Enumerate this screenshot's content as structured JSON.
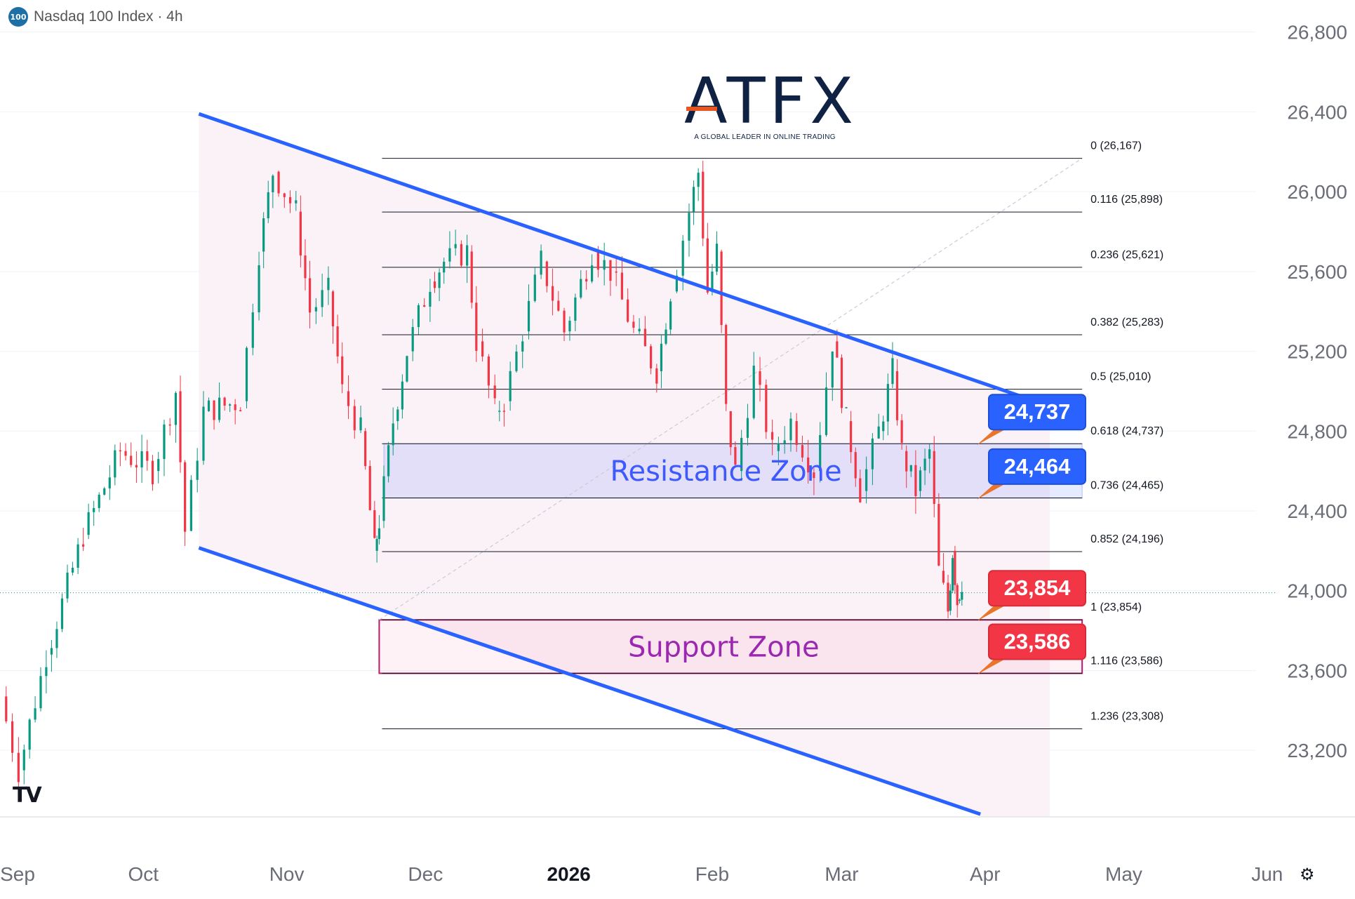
{
  "header": {
    "badge": "100",
    "symbol": "Nasdaq 100 Index",
    "separator": "·",
    "interval": "4h"
  },
  "logo": {
    "wordmark": "ATFX",
    "tagline": "A GLOBAL LEADER IN ONLINE TRADING"
  },
  "watermark": "TV",
  "settings_icon": "gear-icon",
  "chart_data": {
    "type": "candlestick",
    "title": "Nasdaq 100 Index · 4h",
    "y_axis": {
      "ticks": [
        "26,800",
        "26,400",
        "26,000",
        "25,600",
        "25,200",
        "24,800",
        "24,400",
        "24,000",
        "23,600",
        "23,200"
      ],
      "tick_values": [
        26800,
        26400,
        26000,
        25600,
        25200,
        24800,
        24400,
        24000,
        23600,
        23200
      ],
      "ylim": [
        22870,
        26820
      ],
      "position": "right",
      "grid": true
    },
    "x_axis": {
      "ticks": [
        "Sep",
        "Oct",
        "Nov",
        "Dec",
        "2026",
        "Feb",
        "Mar",
        "Apr",
        "May",
        "Jun"
      ],
      "tick_dates": [
        "2025-09-01",
        "2025-10-01",
        "2025-11-01",
        "2025-12-01",
        "2026-01-01",
        "2026-02-01",
        "2026-03-01",
        "2026-04-01",
        "2026-05-01",
        "2026-06-01"
      ],
      "bold_ticks": [
        "2026"
      ],
      "range": [
        "2025-08-31",
        "2026-06-20"
      ],
      "grid": false
    },
    "colors": {
      "up": "#089981",
      "down": "#f23645",
      "channel": "#2962ff",
      "fib": "#131722"
    },
    "price_path": [
      {
        "date": "2025-08-31",
        "price": 23470
      },
      {
        "date": "2025-09-04",
        "price": 23100
      },
      {
        "date": "2025-09-10",
        "price": 23680
      },
      {
        "date": "2025-09-18",
        "price": 24280
      },
      {
        "date": "2025-09-26",
        "price": 24700
      },
      {
        "date": "2025-10-03",
        "price": 24600
      },
      {
        "date": "2025-10-08",
        "price": 25000
      },
      {
        "date": "2025-10-10",
        "price": 24300
      },
      {
        "date": "2025-10-14",
        "price": 24900
      },
      {
        "date": "2025-10-22",
        "price": 24950
      },
      {
        "date": "2025-10-26",
        "price": 25700
      },
      {
        "date": "2025-10-29",
        "price": 26100
      },
      {
        "date": "2025-11-03",
        "price": 25900
      },
      {
        "date": "2025-11-06",
        "price": 25400
      },
      {
        "date": "2025-11-10",
        "price": 25500
      },
      {
        "date": "2025-11-13",
        "price": 25000
      },
      {
        "date": "2025-11-17",
        "price": 24800
      },
      {
        "date": "2025-11-20",
        "price": 24200
      },
      {
        "date": "2025-11-21",
        "price": 24350
      },
      {
        "date": "2025-11-24",
        "price": 24850
      },
      {
        "date": "2025-11-27",
        "price": 25200
      },
      {
        "date": "2025-12-02",
        "price": 25550
      },
      {
        "date": "2025-12-05",
        "price": 25650
      },
      {
        "date": "2025-12-10",
        "price": 25700
      },
      {
        "date": "2025-12-12",
        "price": 25250
      },
      {
        "date": "2025-12-16",
        "price": 24900
      },
      {
        "date": "2025-12-18",
        "price": 24950
      },
      {
        "date": "2025-12-22",
        "price": 25300
      },
      {
        "date": "2025-12-26",
        "price": 25650
      },
      {
        "date": "2025-12-31",
        "price": 25300
      },
      {
        "date": "2026-01-06",
        "price": 25700
      },
      {
        "date": "2026-01-10",
        "price": 25600
      },
      {
        "date": "2026-01-15",
        "price": 25300
      },
      {
        "date": "2026-01-20",
        "price": 25100
      },
      {
        "date": "2026-01-23",
        "price": 25500
      },
      {
        "date": "2026-01-27",
        "price": 25900
      },
      {
        "date": "2026-01-29",
        "price": 26100
      },
      {
        "date": "2026-01-31",
        "price": 25500
      },
      {
        "date": "2026-02-02",
        "price": 25700
      },
      {
        "date": "2026-02-04",
        "price": 24900
      },
      {
        "date": "2026-02-06",
        "price": 24600
      },
      {
        "date": "2026-02-10",
        "price": 25100
      },
      {
        "date": "2026-02-14",
        "price": 24700
      },
      {
        "date": "2026-02-18",
        "price": 24850
      },
      {
        "date": "2026-02-23",
        "price": 24600
      },
      {
        "date": "2026-02-27",
        "price": 25250
      },
      {
        "date": "2026-03-02",
        "price": 24850
      },
      {
        "date": "2026-03-05",
        "price": 24500
      },
      {
        "date": "2026-03-09",
        "price": 24800
      },
      {
        "date": "2026-03-12",
        "price": 25100
      },
      {
        "date": "2026-03-14",
        "price": 24700
      },
      {
        "date": "2026-03-17",
        "price": 24500
      },
      {
        "date": "2026-03-20",
        "price": 24700
      },
      {
        "date": "2026-03-22",
        "price": 24100
      },
      {
        "date": "2026-03-24",
        "price": 23900
      },
      {
        "date": "2026-03-25",
        "price": 24200
      },
      {
        "date": "2026-03-26",
        "price": 23950
      },
      {
        "date": "2026-03-27",
        "price": 24050
      }
    ],
    "current_price": 23990,
    "channel": {
      "upper": {
        "start": {
          "date": "2025-10-13",
          "price": 26390
        },
        "end": {
          "date": "2026-04-15",
          "price": 24925
        }
      },
      "lower": {
        "start": {
          "date": "2025-10-13",
          "price": 24215
        },
        "end": {
          "date": "2026-03-31",
          "price": 22880
        }
      },
      "fill_end_date": "2026-04-15"
    },
    "fibonacci": {
      "anchor_low": {
        "date": "2025-11-21",
        "price": 23854
      },
      "anchor_high": {
        "date": "2026-04-22",
        "price": 26167
      },
      "start_date": "2025-11-21",
      "end_date": "2026-04-22",
      "levels": [
        {
          "ratio": "0",
          "price": 26167,
          "label": "0 (26,167)"
        },
        {
          "ratio": "0.116",
          "price": 25898,
          "label": "0.116 (25,898)"
        },
        {
          "ratio": "0.236",
          "price": 25621,
          "label": "0.236 (25,621)"
        },
        {
          "ratio": "0.382",
          "price": 25283,
          "label": "0.382 (25,283)"
        },
        {
          "ratio": "0.5",
          "price": 25010,
          "label": "0.5 (25,010)"
        },
        {
          "ratio": "0.618",
          "price": 24737,
          "label": "0.618 (24,737)"
        },
        {
          "ratio": "0.736",
          "price": 24465,
          "label": "0.736 (24,465)"
        },
        {
          "ratio": "0.852",
          "price": 24196,
          "label": "0.852 (24,196)"
        },
        {
          "ratio": "1",
          "price": 23854,
          "label": "1 (23,854)"
        },
        {
          "ratio": "1.116",
          "price": 23586,
          "label": "1.116 (23,586)"
        },
        {
          "ratio": "1.236",
          "price": 23308,
          "label": "1.236 (23,308)"
        }
      ]
    },
    "zones": [
      {
        "name": "Resistance Zone",
        "top": 24737,
        "bottom": 24464,
        "start_date": "2025-11-22",
        "end_date": "2026-04-22",
        "color": "#3d5afe",
        "text_color": "#3d5afe"
      },
      {
        "name": "Support Zone",
        "top": 23854,
        "bottom": 23586,
        "start_date": "2025-11-21",
        "end_date": "2026-04-22",
        "color": "#b71c6b",
        "text_color": "#9c27b0"
      }
    ],
    "callouts": [
      {
        "text": "24,737",
        "price": 24737,
        "color": "#2962ff"
      },
      {
        "text": "24,464",
        "price": 24464,
        "color": "#2962ff"
      },
      {
        "text": "23,854",
        "price": 23854,
        "color": "#f23645"
      },
      {
        "text": "23,586",
        "price": 23586,
        "color": "#f23645"
      }
    ]
  }
}
